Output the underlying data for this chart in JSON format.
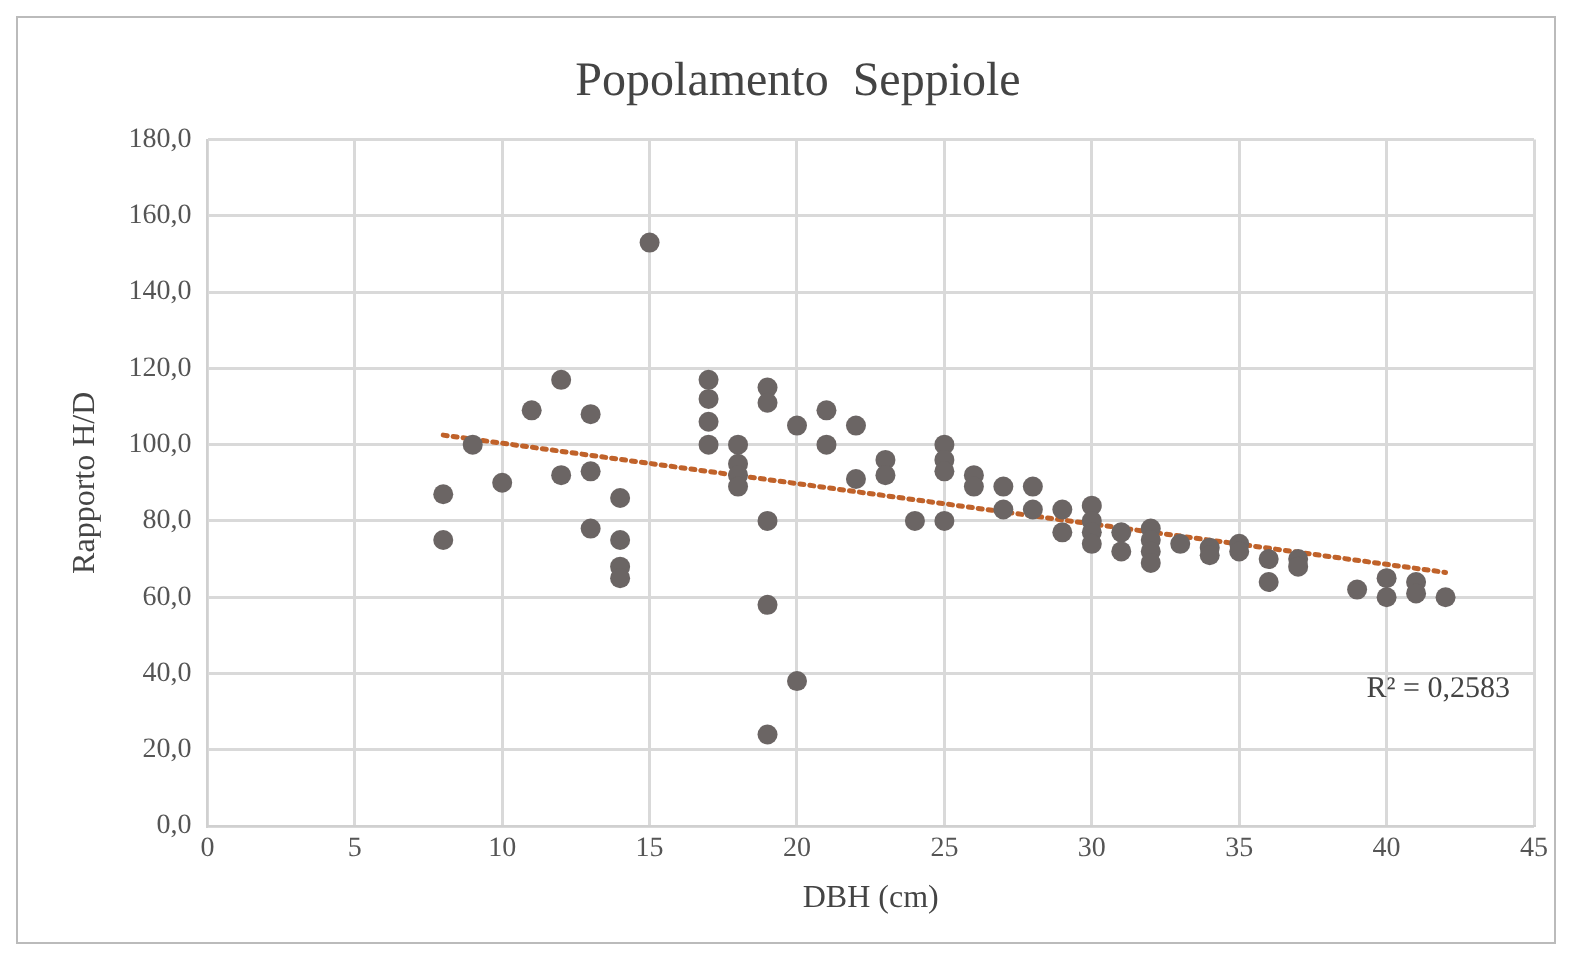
{
  "chart_data": {
    "type": "scatter",
    "title": "Popolamento  Seppiole",
    "xlabel": "DBH (cm)",
    "ylabel": "Rapporto H/D",
    "xlim": [
      0,
      45
    ],
    "xticks": [
      0,
      5,
      10,
      15,
      20,
      25,
      30,
      35,
      40,
      45
    ],
    "ylim": [
      0,
      180
    ],
    "yticks": [
      {
        "value": 0,
        "label": "0,0"
      },
      {
        "value": 20,
        "label": "20,0"
      },
      {
        "value": 40,
        "label": "40,0"
      },
      {
        "value": 60,
        "label": "60,0"
      },
      {
        "value": 80,
        "label": "80,0"
      },
      {
        "value": 100,
        "label": "100,0"
      },
      {
        "value": 120,
        "label": "120,0"
      },
      {
        "value": 140,
        "label": "140,0"
      },
      {
        "value": 160,
        "label": "160,0"
      },
      {
        "value": 180,
        "label": "180,0"
      }
    ],
    "grid": true,
    "legend": false,
    "marker": "circle",
    "annotations": [
      "R² = 0,2583"
    ],
    "series": [
      {
        "color": "#6b6564",
        "x": [
          8,
          8,
          9,
          10,
          11,
          12,
          12,
          13,
          13,
          13,
          14,
          14,
          14,
          14,
          15,
          17,
          17,
          17,
          17,
          18,
          18,
          18,
          18,
          19,
          19,
          19,
          19,
          19,
          20,
          20,
          21,
          21,
          22,
          22,
          23,
          23,
          24,
          25,
          25,
          25,
          25,
          26,
          26,
          27,
          27,
          28,
          28,
          29,
          29,
          30,
          30,
          30,
          30,
          31,
          31,
          32,
          32,
          32,
          32,
          33,
          34,
          34,
          35,
          35,
          36,
          36,
          37,
          37,
          39,
          40,
          40,
          41,
          41,
          42
        ],
        "values": [
          87,
          75,
          100,
          90,
          109,
          117,
          92,
          108,
          93,
          78,
          86,
          75,
          68,
          65,
          153,
          117,
          112,
          106,
          100,
          100,
          95,
          92,
          89,
          115,
          111,
          80,
          58,
          24,
          105,
          38,
          109,
          100,
          105,
          91,
          96,
          92,
          80,
          100,
          96,
          93,
          80,
          92,
          89,
          89,
          83,
          89,
          83,
          83,
          77,
          84,
          80,
          77,
          74,
          77,
          72,
          78,
          75,
          72,
          69,
          74,
          73,
          71,
          74,
          72,
          70,
          64,
          70,
          68,
          62,
          65,
          60,
          64,
          61,
          60
        ]
      },
      {
        "type": "line",
        "color": "#c0622a",
        "line_style": "dotted",
        "marker": "none",
        "x": [
          8,
          42
        ],
        "values": [
          102.5,
          66.5
        ]
      }
    ]
  }
}
